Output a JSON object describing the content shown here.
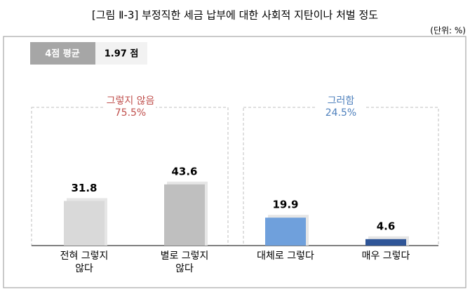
{
  "chart_data": {
    "type": "bar",
    "title": "[그림 Ⅱ-3] 부정직한 세금 납부에 대한 사회적 지탄이나 처벌 정도",
    "unit": "(단위: %)",
    "badge": {
      "label": "4점 평균",
      "value": "1.97 점"
    },
    "groups": [
      {
        "name": "그렇지 않음",
        "total": "75.5%",
        "color": "#c0504d"
      },
      {
        "name": "그러함",
        "total": "24.5%",
        "color": "#4f81bd"
      }
    ],
    "categories": [
      "전혀 그렇지\n않다",
      "별로 그렇지\n않다",
      "대체로 그렇다",
      "매우 그렇다"
    ],
    "values": [
      31.8,
      43.6,
      19.9,
      4.6
    ],
    "colors": [
      "#d9d9d9",
      "#bfbfbf",
      "#6fa0dc",
      "#2f5597"
    ]
  }
}
